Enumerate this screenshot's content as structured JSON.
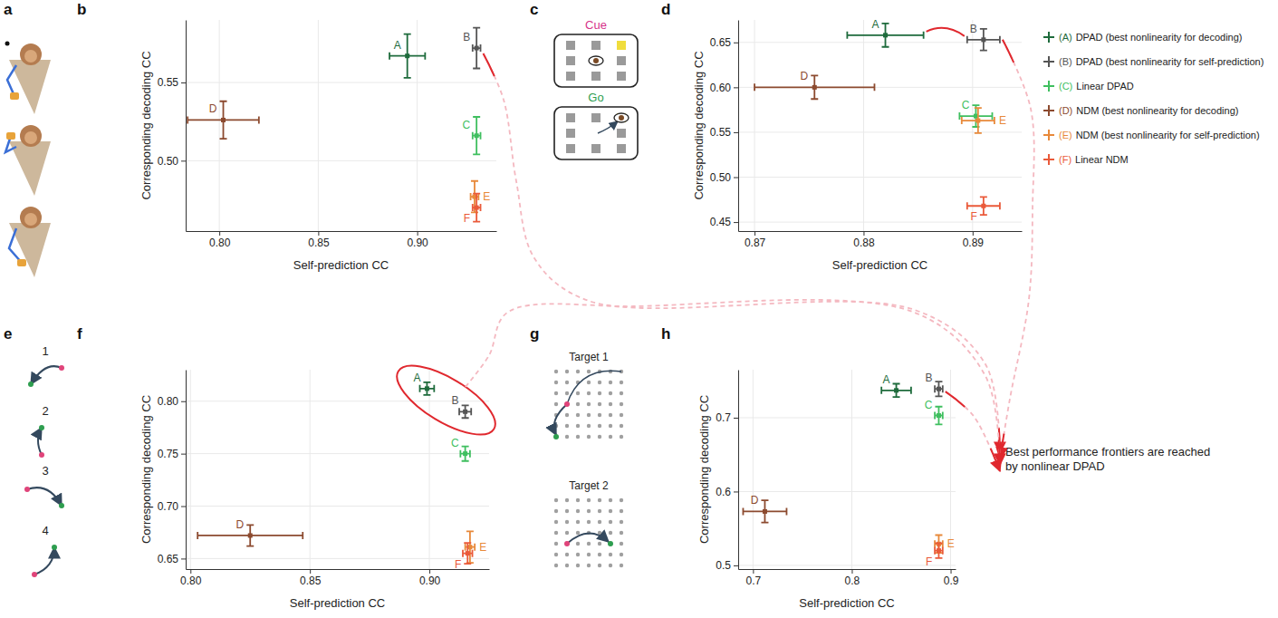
{
  "panel_letters": [
    "a",
    "b",
    "c",
    "d",
    "e",
    "f",
    "g",
    "h"
  ],
  "chart_data": [
    {
      "type": "scatter",
      "x_label": "Self-prediction CC",
      "y_label": "Corresponding decoding CC",
      "xlim": [
        0.783,
        0.94
      ],
      "ylim": [
        0.455,
        0.59
      ],
      "xticks": [
        {
          "value": 0.8,
          "label": "0.80"
        },
        0.85,
        {
          "value": 0.9,
          "label": "0.90"
        }
      ],
      "yticks": [
        {
          "value": 0.5,
          "label": "0.50"
        },
        0.55
      ],
      "grid": true,
      "marker": "square",
      "series": [
        {
          "name": "A",
          "color": "#1e6b3c",
          "x": [
            0.895
          ],
          "values": [
            0.567
          ],
          "x_error": [
            0.009
          ],
          "error": [
            0.014
          ]
        },
        {
          "name": "B",
          "color": "#555555",
          "x": [
            0.93
          ],
          "values": [
            0.572
          ],
          "x_error": [
            0.002
          ],
          "error": [
            0.013
          ]
        },
        {
          "name": "C",
          "color": "#3fbf5f",
          "x": [
            0.93
          ],
          "values": [
            0.516
          ],
          "x_error": [
            0.002
          ],
          "error": [
            0.012
          ]
        },
        {
          "name": "D",
          "color": "#8c4a2f",
          "x": [
            0.802
          ],
          "values": [
            0.526
          ],
          "x_error": [
            0.018
          ],
          "error": [
            0.012
          ]
        },
        {
          "name": "E",
          "color": "#e8893a",
          "x": [
            0.929
          ],
          "values": [
            0.477
          ],
          "x_error": [
            0.002
          ],
          "error": [
            0.01
          ]
        },
        {
          "name": "F",
          "color": "#ea5a3a",
          "x": [
            0.93
          ],
          "values": [
            0.47
          ],
          "x_error": [
            0.002
          ],
          "error": [
            0.009
          ]
        }
      ]
    },
    {
      "type": "scatter",
      "x_label": "Self-prediction CC",
      "y_label": "Corresponding decoding CC",
      "xlim": [
        0.8685,
        0.8945
      ],
      "ylim": [
        0.44,
        0.675
      ],
      "xticks": [
        0.87,
        0.88,
        0.89
      ],
      "yticks": [
        0.45,
        {
          "value": 0.5,
          "label": "0.50"
        },
        0.55,
        {
          "value": 0.6,
          "label": "0.60"
        },
        0.65
      ],
      "grid": true,
      "marker": "square",
      "series": [
        {
          "name": "A",
          "color": "#1e6b3c",
          "x": [
            0.882
          ],
          "values": [
            0.658
          ],
          "x_error": [
            0.0035
          ],
          "error": [
            0.013
          ]
        },
        {
          "name": "B",
          "color": "#555555",
          "x": [
            0.891
          ],
          "values": [
            0.653
          ],
          "x_error": [
            0.0015
          ],
          "error": [
            0.012
          ]
        },
        {
          "name": "C",
          "color": "#3fbf5f",
          "x": [
            0.8903
          ],
          "values": [
            0.568
          ],
          "x_error": [
            0.0015
          ],
          "error": [
            0.012
          ]
        },
        {
          "name": "D",
          "color": "#8c4a2f",
          "x": [
            0.8755
          ],
          "values": [
            0.6
          ],
          "x_error": [
            0.0055
          ],
          "error": [
            0.013
          ]
        },
        {
          "name": "E",
          "color": "#e8893a",
          "x": [
            0.8905
          ],
          "values": [
            0.563
          ],
          "x_error": [
            0.0015
          ],
          "error": [
            0.014
          ]
        },
        {
          "name": "F",
          "color": "#ea5a3a",
          "x": [
            0.891
          ],
          "values": [
            0.468
          ],
          "x_error": [
            0.0015
          ],
          "error": [
            0.01
          ]
        }
      ]
    },
    {
      "type": "scatter",
      "x_label": "Self-prediction CC",
      "y_label": "Corresponding decoding CC",
      "xlim": [
        0.798,
        0.925
      ],
      "ylim": [
        0.64,
        0.83
      ],
      "xticks": [
        {
          "value": 0.8,
          "label": "0.80"
        },
        0.85,
        {
          "value": 0.9,
          "label": "0.90"
        }
      ],
      "yticks": [
        0.65,
        {
          "value": 0.7,
          "label": "0.70"
        },
        0.75,
        {
          "value": 0.8,
          "label": "0.80"
        }
      ],
      "grid": true,
      "marker": "square",
      "series": [
        {
          "name": "A",
          "color": "#1e6b3c",
          "x": [
            0.899
          ],
          "values": [
            0.812
          ],
          "x_error": [
            0.003
          ],
          "error": [
            0.006
          ]
        },
        {
          "name": "B",
          "color": "#555555",
          "x": [
            0.915
          ],
          "values": [
            0.79
          ],
          "x_error": [
            0.0025
          ],
          "error": [
            0.006
          ]
        },
        {
          "name": "C",
          "color": "#3fbf5f",
          "x": [
            0.915
          ],
          "values": [
            0.75
          ],
          "x_error": [
            0.002
          ],
          "error": [
            0.007
          ]
        },
        {
          "name": "D",
          "color": "#8c4a2f",
          "x": [
            0.825
          ],
          "values": [
            0.672
          ],
          "x_error": [
            0.022
          ],
          "error": [
            0.01
          ]
        },
        {
          "name": "E",
          "color": "#e8893a",
          "x": [
            0.917
          ],
          "values": [
            0.661
          ],
          "x_error": [
            0.002
          ],
          "error": [
            0.015
          ]
        },
        {
          "name": "F",
          "color": "#ea5a3a",
          "x": [
            0.916
          ],
          "values": [
            0.655
          ],
          "x_error": [
            0.002
          ],
          "error": [
            0.01
          ]
        }
      ]
    },
    {
      "type": "scatter",
      "x_label": "Self-prediction CC",
      "y_label": "Corresponding decoding CC",
      "xlim": [
        0.685,
        0.905
      ],
      "ylim": [
        0.495,
        0.765
      ],
      "xticks": [
        0.7,
        0.8,
        0.9
      ],
      "yticks": [
        0.5,
        0.6,
        0.7
      ],
      "grid": true,
      "marker": "square",
      "series": [
        {
          "name": "A",
          "color": "#1e6b3c",
          "x": [
            0.845
          ],
          "values": [
            0.737
          ],
          "x_error": [
            0.015
          ],
          "error": [
            0.009
          ]
        },
        {
          "name": "B",
          "color": "#555555",
          "x": [
            0.888
          ],
          "values": [
            0.739
          ],
          "x_error": [
            0.004
          ],
          "error": [
            0.01
          ]
        },
        {
          "name": "C",
          "color": "#3fbf5f",
          "x": [
            0.888
          ],
          "values": [
            0.703
          ],
          "x_error": [
            0.004
          ],
          "error": [
            0.012
          ]
        },
        {
          "name": "D",
          "color": "#8c4a2f",
          "x": [
            0.712
          ],
          "values": [
            0.573
          ],
          "x_error": [
            0.022
          ],
          "error": [
            0.015
          ]
        },
        {
          "name": "E",
          "color": "#e8893a",
          "x": [
            0.888
          ],
          "values": [
            0.529
          ],
          "x_error": [
            0.004
          ],
          "error": [
            0.012
          ]
        },
        {
          "name": "F",
          "color": "#ea5a3a",
          "x": [
            0.888
          ],
          "values": [
            0.52
          ],
          "x_error": [
            0.004
          ],
          "error": [
            0.01
          ]
        }
      ]
    }
  ],
  "figure_legend": {
    "position": "right",
    "entries": [
      {
        "key": "(A)",
        "label": "DPAD (best nonlinearity for decoding)",
        "color": "#1e6b3c"
      },
      {
        "key": "(B)",
        "label": "DPAD (best nonlinearity for self-prediction)",
        "color": "#555555"
      },
      {
        "key": "(C)",
        "label": "Linear DPAD",
        "color": "#3fbf5f"
      },
      {
        "key": "(D)",
        "label": "NDM (best nonlinearity for decoding)",
        "color": "#8c4a2f"
      },
      {
        "key": "(E)",
        "label": "NDM (best nonlinearity for self-prediction)",
        "color": "#e8893a"
      },
      {
        "key": "(F)",
        "label": "Linear NDM",
        "color": "#ea5a3a"
      }
    ]
  },
  "annotation": "Best performance frontiers are reached by nonlinear DPAD",
  "task_c": {
    "labels": [
      "Cue",
      "Go"
    ]
  },
  "task_e": {
    "labels": [
      "1",
      "2",
      "3",
      "4"
    ]
  },
  "task_g": {
    "labels": [
      "Target 1",
      "Target 2"
    ]
  }
}
